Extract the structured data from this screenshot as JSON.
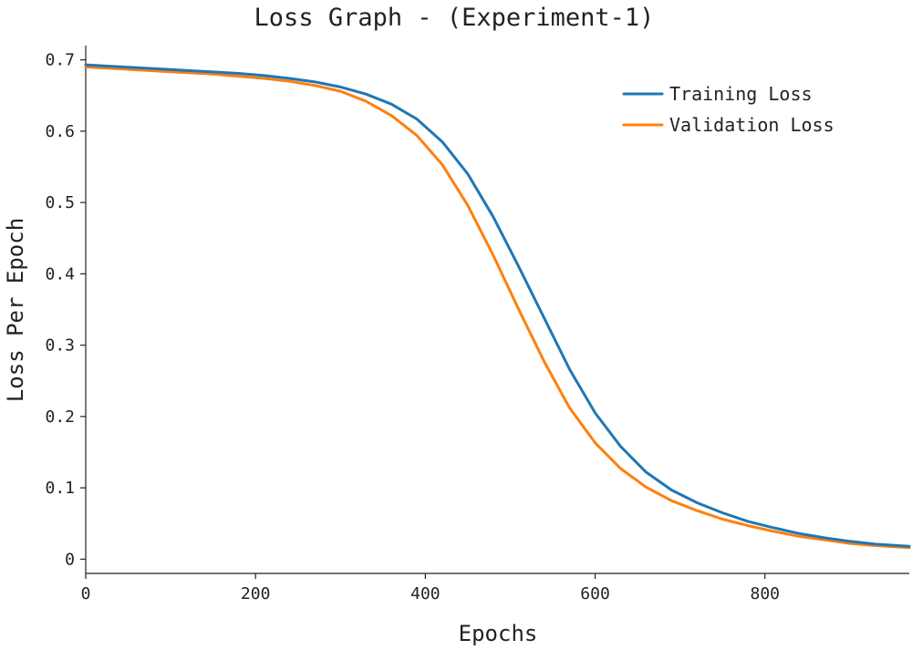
{
  "chart_data": {
    "type": "line",
    "title": "Loss Graph - (Experiment-1)",
    "xlabel": "Epochs",
    "ylabel": "Loss Per Epoch",
    "xlim": [
      0,
      970
    ],
    "ylim": [
      -0.02,
      0.72
    ],
    "xticks": [
      0,
      200,
      400,
      600,
      800
    ],
    "xtick_labels": [
      "0",
      "200",
      "400",
      "600",
      "800"
    ],
    "yticks": [
      0,
      0.1,
      0.2,
      0.3,
      0.4,
      0.5,
      0.6,
      0.7
    ],
    "ytick_labels": [
      "0",
      "0.1",
      "0.2",
      "0.3",
      "0.4",
      "0.5",
      "0.6",
      "0.7"
    ],
    "grid": false,
    "legend_position": "top-right",
    "x": [
      0,
      30,
      60,
      90,
      120,
      150,
      180,
      210,
      240,
      270,
      300,
      330,
      360,
      390,
      420,
      450,
      480,
      510,
      540,
      570,
      600,
      630,
      660,
      690,
      720,
      750,
      780,
      810,
      840,
      870,
      900,
      930,
      970
    ],
    "series": [
      {
        "name": "Training Loss",
        "color": "#1f77b4",
        "values": [
          0.693,
          0.691,
          0.689,
          0.687,
          0.685,
          0.683,
          0.681,
          0.678,
          0.674,
          0.669,
          0.662,
          0.652,
          0.638,
          0.617,
          0.585,
          0.54,
          0.48,
          0.41,
          0.338,
          0.266,
          0.205,
          0.158,
          0.122,
          0.097,
          0.079,
          0.065,
          0.053,
          0.044,
          0.036,
          0.03,
          0.025,
          0.021,
          0.018
        ]
      },
      {
        "name": "Validation Loss",
        "color": "#ff7f0e",
        "values": [
          0.69,
          0.688,
          0.686,
          0.684,
          0.682,
          0.68,
          0.677,
          0.674,
          0.67,
          0.664,
          0.656,
          0.642,
          0.622,
          0.594,
          0.553,
          0.496,
          0.426,
          0.35,
          0.277,
          0.212,
          0.163,
          0.127,
          0.101,
          0.082,
          0.068,
          0.056,
          0.047,
          0.039,
          0.032,
          0.027,
          0.022,
          0.019,
          0.016
        ]
      }
    ]
  }
}
